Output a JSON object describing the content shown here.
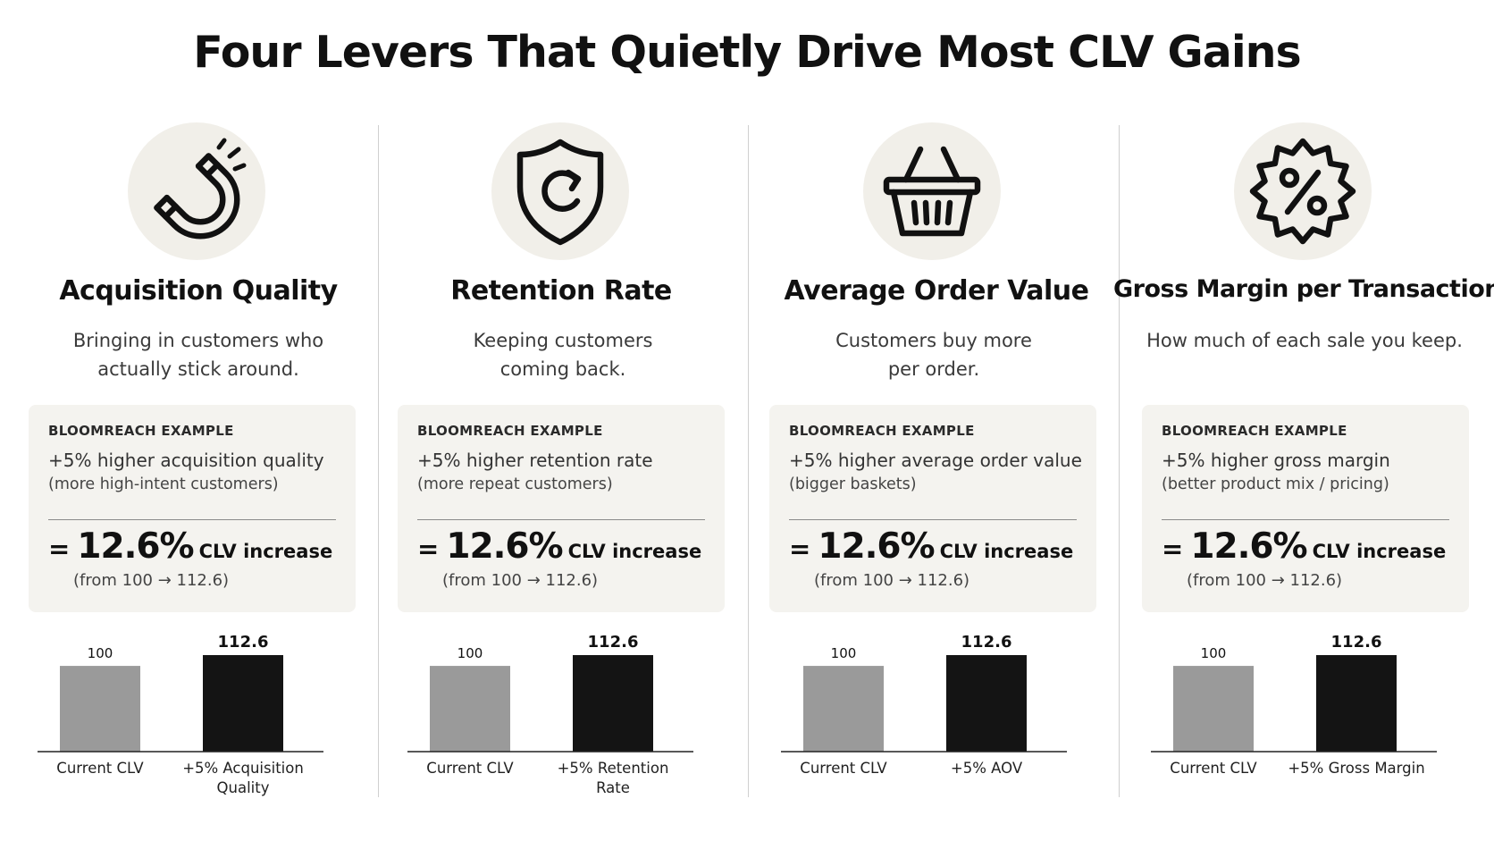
{
  "title": "Four Levers That Quietly Drive Most CLV Gains",
  "levers": [
    {
      "icon": "magnet-icon",
      "heading": "Acquisition Quality",
      "desc_lines": [
        "Bringing in customers who",
        "actually stick around."
      ],
      "card": {
        "tag": "BLOOMREACH EXAMPLE",
        "line1": "+5% higher acquisition quality",
        "line2": "(more high-intent customers)",
        "eq": "=",
        "result_value": "12.6%",
        "result_label": "CLV increase",
        "from_text": "(from 100 → 112.6)"
      }
    },
    {
      "icon": "shield-refresh-icon",
      "heading": "Retention Rate",
      "desc_lines": [
        "Keeping customers",
        "coming back."
      ],
      "card": {
        "tag": "BLOOMREACH EXAMPLE",
        "line1": "+5% higher retention rate",
        "line2": "(more repeat customers)",
        "eq": "=",
        "result_value": "12.6%",
        "result_label": "CLV increase",
        "from_text": "(from 100 → 112.6)"
      }
    },
    {
      "icon": "basket-icon",
      "heading": "Average Order Value",
      "desc_lines": [
        "Customers buy more",
        "per order."
      ],
      "card": {
        "tag": "BLOOMREACH EXAMPLE",
        "line1": "+5% higher average order value",
        "line2": "(bigger baskets)",
        "eq": "=",
        "result_value": "12.6%",
        "result_label": "CLV increase",
        "from_text": "(from 100 → 112.6)"
      }
    },
    {
      "icon": "percent-badge-icon",
      "heading": "Gross Margin per Transaction",
      "desc_lines": [
        "How much of each sale you keep."
      ],
      "card": {
        "tag": "BLOOMREACH EXAMPLE",
        "line1": "+5% higher gross margin",
        "line2": "(better product mix / pricing)",
        "eq": "=",
        "result_value": "12.6%",
        "result_label": "CLV increase",
        "from_text": "(from 100 → 112.6)"
      }
    }
  ],
  "colors": {
    "current_bar": "#9a9a9a",
    "improved_bar": "#141414",
    "icon_bg": "#f1efe9",
    "card_bg": "#f4f3ef"
  },
  "chart_data": [
    {
      "type": "bar",
      "categories": [
        "Current CLV",
        "+5% Acquisition Quality"
      ],
      "category_lines": [
        [
          "Current CLV"
        ],
        [
          "+5% Acquisition",
          "Quality"
        ]
      ],
      "values": [
        100,
        112.6
      ],
      "data_labels": [
        "100",
        "112.6"
      ],
      "title": "",
      "xlabel": "",
      "ylabel": "",
      "ylim": [
        0,
        112.6
      ],
      "grid": false
    },
    {
      "type": "bar",
      "categories": [
        "Current CLV",
        "+5% Retention Rate"
      ],
      "category_lines": [
        [
          "Current CLV"
        ],
        [
          "+5% Retention",
          "Rate"
        ]
      ],
      "values": [
        100,
        112.6
      ],
      "data_labels": [
        "100",
        "112.6"
      ],
      "title": "",
      "xlabel": "",
      "ylabel": "",
      "ylim": [
        0,
        112.6
      ],
      "grid": false
    },
    {
      "type": "bar",
      "categories": [
        "Current CLV",
        "+5% AOV"
      ],
      "category_lines": [
        [
          "Current CLV"
        ],
        [
          "+5% AOV"
        ]
      ],
      "values": [
        100,
        112.6
      ],
      "data_labels": [
        "100",
        "112.6"
      ],
      "title": "",
      "xlabel": "",
      "ylabel": "",
      "ylim": [
        0,
        112.6
      ],
      "grid": false
    },
    {
      "type": "bar",
      "categories": [
        "Current CLV",
        "+5% Gross Margin"
      ],
      "category_lines": [
        [
          "Current CLV"
        ],
        [
          "+5% Gross Margin"
        ]
      ],
      "values": [
        100,
        112.6
      ],
      "data_labels": [
        "100",
        "112.6"
      ],
      "title": "",
      "xlabel": "",
      "ylabel": "",
      "ylim": [
        0,
        112.6
      ],
      "grid": false
    }
  ]
}
